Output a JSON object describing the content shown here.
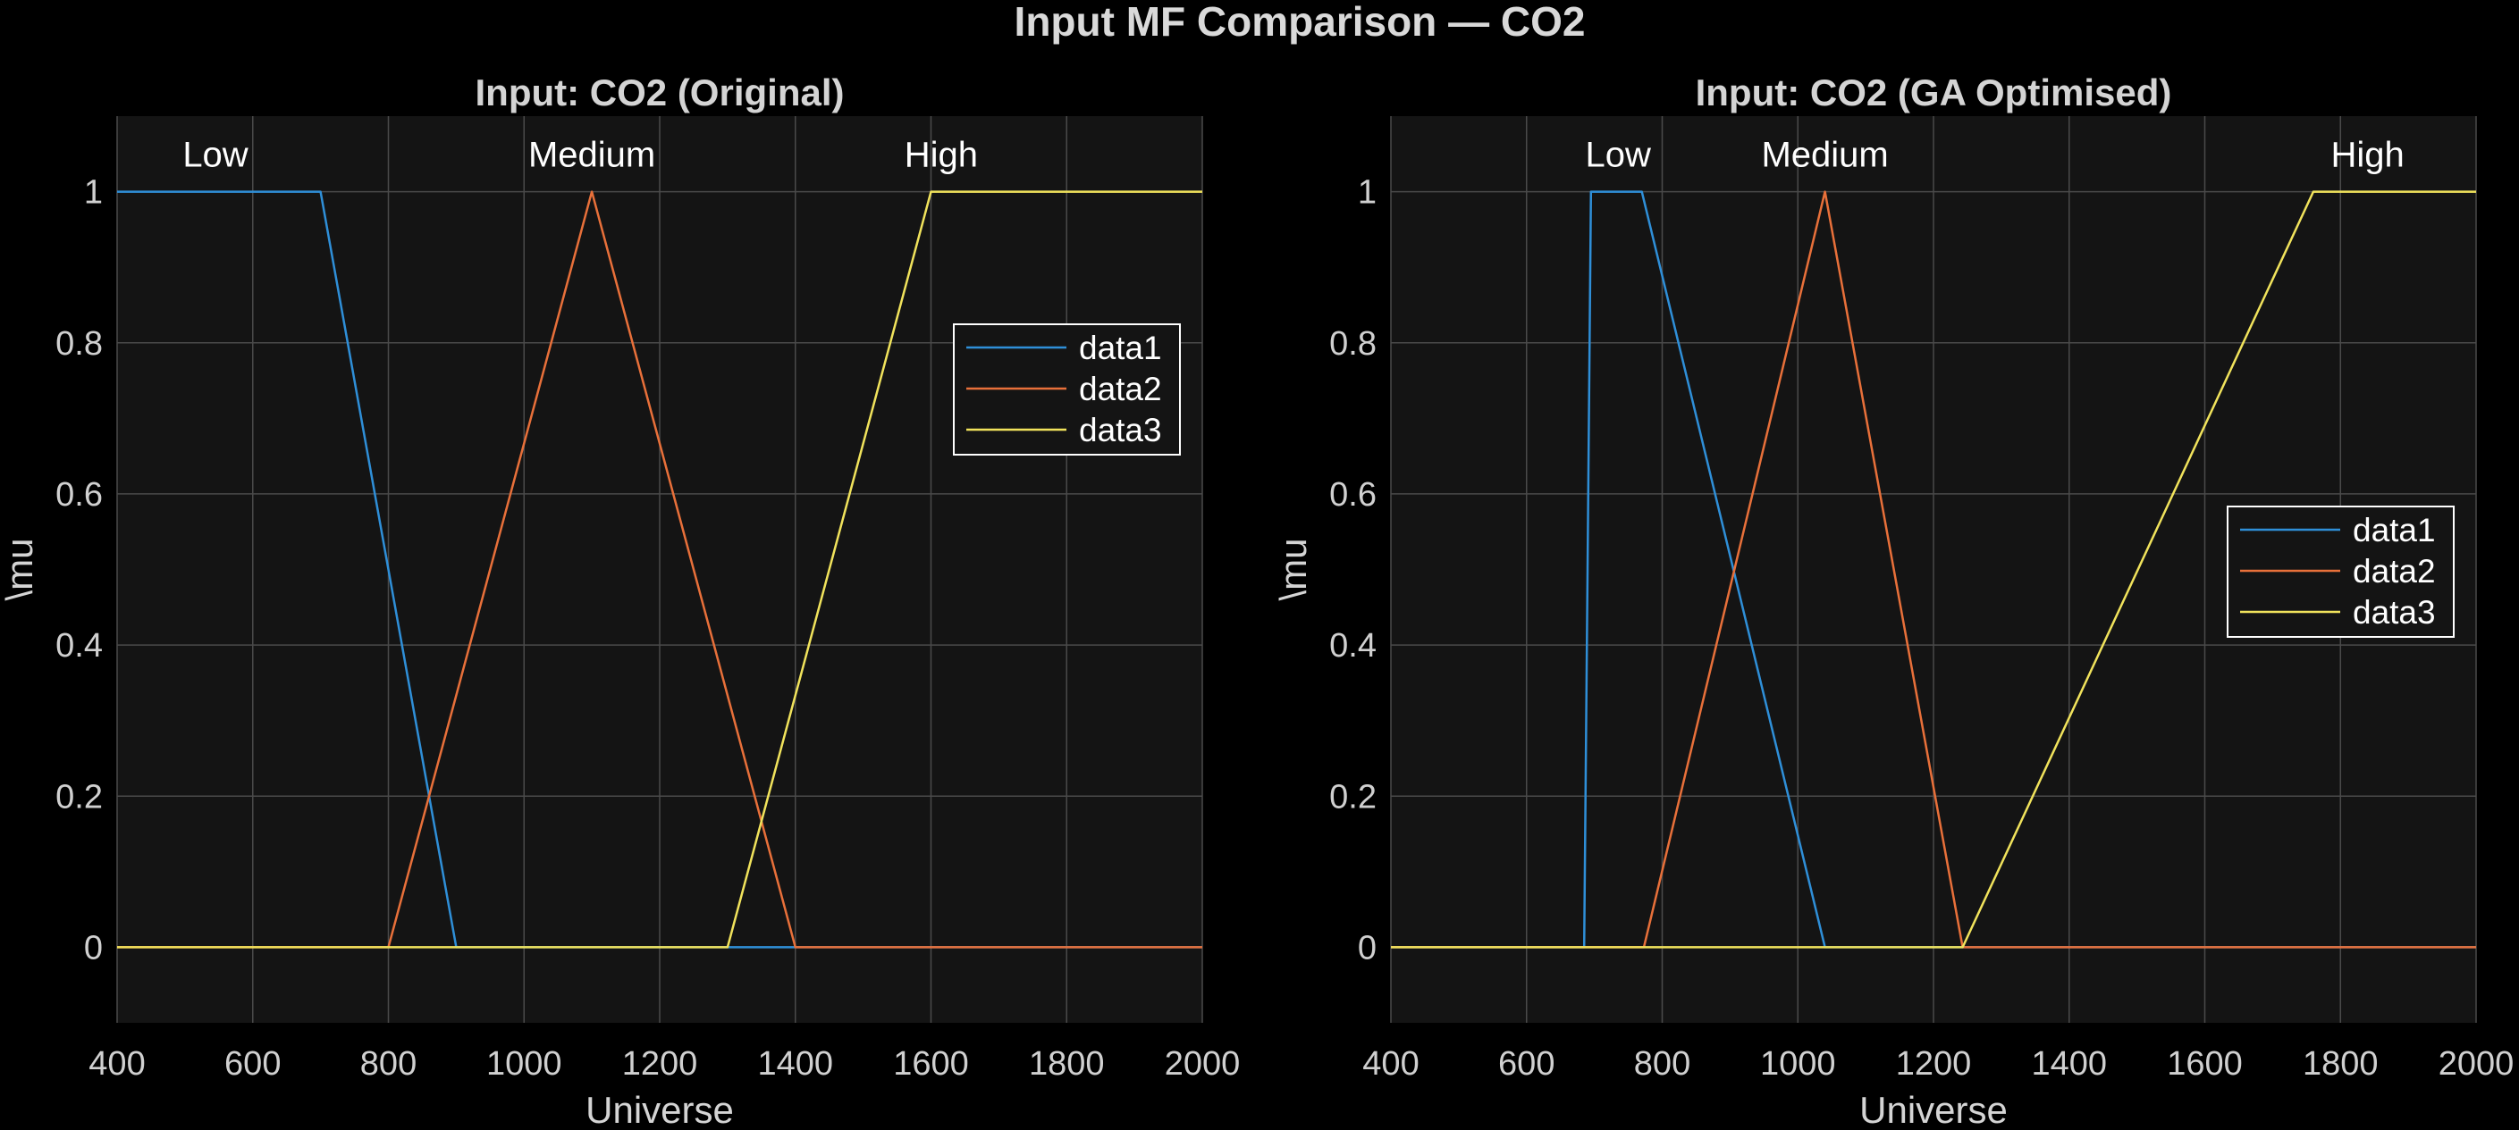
{
  "figure": {
    "title": "Input MF Comparison — CO2"
  },
  "chart_data": [
    {
      "type": "line",
      "title": "Input: CO2 (Original)",
      "xlabel": "Universe",
      "ylabel": "\\mu",
      "xlim": [
        400,
        2000
      ],
      "ylim": [
        -0.1,
        1.1
      ],
      "xticks": [
        400,
        600,
        800,
        1000,
        1200,
        1400,
        1600,
        1800,
        2000
      ],
      "yticks": [
        0,
        0.2,
        0.4,
        0.6,
        0.8,
        1
      ],
      "grid": true,
      "legend_position": "right",
      "series": [
        {
          "name": "data1",
          "color": "#2f8fd8",
          "x": [
            400,
            700,
            900,
            2000
          ],
          "y": [
            1,
            1,
            0,
            0
          ]
        },
        {
          "name": "data2",
          "color": "#e8703a",
          "x": [
            400,
            800,
            1100,
            1400,
            2000
          ],
          "y": [
            0,
            0,
            1,
            0,
            0
          ]
        },
        {
          "name": "data3",
          "color": "#f1e35c",
          "x": [
            400,
            1300,
            1600,
            2000
          ],
          "y": [
            0,
            0,
            1,
            1
          ]
        }
      ],
      "annotations": [
        {
          "text": "Low",
          "x": 545,
          "y": 1.05
        },
        {
          "text": "Medium",
          "x": 1100,
          "y": 1.05
        },
        {
          "text": "High",
          "x": 1615,
          "y": 1.05
        }
      ]
    },
    {
      "type": "line",
      "title": "Input: CO2 (GA Optimised)",
      "xlabel": "Universe",
      "ylabel": "\\mu",
      "xlim": [
        400,
        2000
      ],
      "ylim": [
        -0.1,
        1.1
      ],
      "xticks": [
        400,
        600,
        800,
        1000,
        1200,
        1400,
        1600,
        1800,
        2000
      ],
      "yticks": [
        0,
        0.2,
        0.4,
        0.6,
        0.8,
        1
      ],
      "grid": true,
      "legend_position": "right",
      "series": [
        {
          "name": "data1",
          "color": "#2f8fd8",
          "x": [
            400,
            685,
            695,
            770,
            1040,
            2000
          ],
          "y": [
            0,
            0,
            1,
            1,
            0,
            0
          ]
        },
        {
          "name": "data2",
          "color": "#e8703a",
          "x": [
            400,
            773,
            1040,
            1243,
            2000
          ],
          "y": [
            0,
            0,
            1,
            0,
            0
          ]
        },
        {
          "name": "data3",
          "color": "#f1e35c",
          "x": [
            400,
            1243,
            1760,
            2000
          ],
          "y": [
            0,
            0,
            1,
            1
          ]
        }
      ],
      "annotations": [
        {
          "text": "Low",
          "x": 735,
          "y": 1.05
        },
        {
          "text": "Medium",
          "x": 1040,
          "y": 1.05
        },
        {
          "text": "High",
          "x": 1840,
          "y": 1.05
        }
      ]
    }
  ]
}
